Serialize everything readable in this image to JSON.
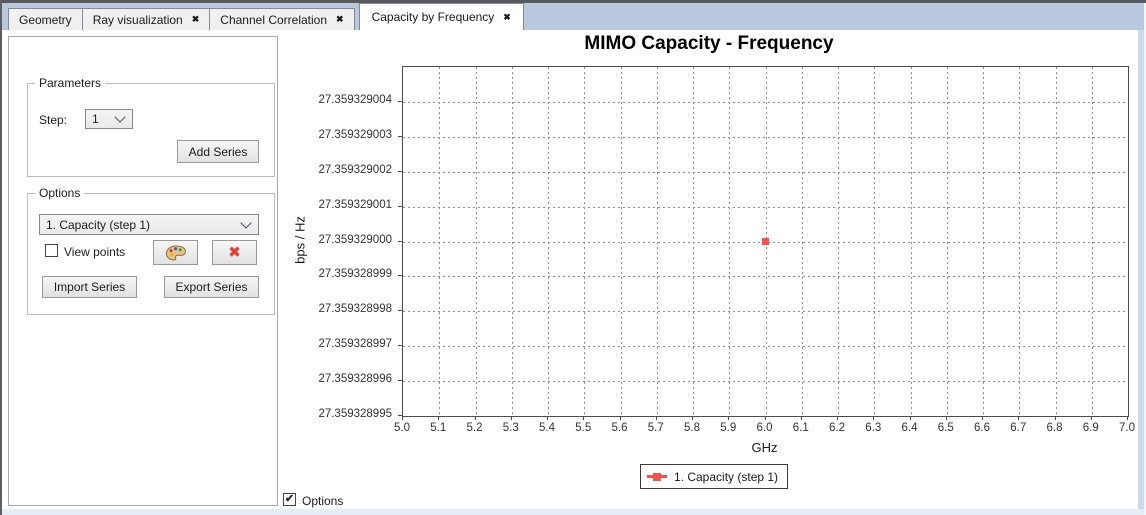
{
  "window": {
    "tab_bar_color": "#b9c8dd",
    "tabs": [
      {
        "label": "Geometry",
        "closable": false,
        "active": false
      },
      {
        "label": "Ray visualization",
        "closable": true,
        "active": false
      },
      {
        "label": "Channel Correlation",
        "closable": true,
        "active": false
      },
      {
        "label": "Capacity by Frequency",
        "closable": true,
        "active": true
      }
    ]
  },
  "sidebar": {
    "parameters": {
      "title": "Parameters",
      "step_label": "Step:",
      "step_value": "1",
      "add_series_label": "Add Series"
    },
    "options": {
      "title": "Options",
      "series_select_value": "1. Capacity (step 1)",
      "view_points_label": "View points",
      "view_points_checked": false,
      "color_button_icon": "palette-icon",
      "delete_button_icon": "red-cross-icon",
      "import_series_label": "Import Series",
      "export_series_label": "Export Series"
    }
  },
  "footer": {
    "options_label": "Options",
    "options_checked": true
  },
  "chart_data": {
    "type": "scatter",
    "title": "MIMO Capacity - Frequency",
    "xlabel": "GHz",
    "ylabel": "bps / Hz",
    "xlim": [
      5.0,
      7.0
    ],
    "ylim": [
      27.359328995,
      27.359329005
    ],
    "x_ticks": [
      "5.0",
      "5.1",
      "5.2",
      "5.3",
      "5.4",
      "5.5",
      "5.6",
      "5.7",
      "5.8",
      "5.9",
      "6.0",
      "6.1",
      "6.2",
      "6.3",
      "6.4",
      "6.5",
      "6.6",
      "6.7",
      "6.8",
      "6.9",
      "7.0"
    ],
    "y_ticks": [
      "27.359328995",
      "27.359328996",
      "27.359328997",
      "27.359328998",
      "27.359328999",
      "27.359329000",
      "27.359329001",
      "27.359329002",
      "27.359329003",
      "27.359329004"
    ],
    "grid": true,
    "grid_style": "dotted",
    "legend_position": "bottom-center",
    "series": [
      {
        "name": "1. Capacity (step 1)",
        "color": "#f2514c",
        "marker": "square",
        "points": [
          [
            6.0,
            27.359329
          ]
        ]
      }
    ]
  }
}
